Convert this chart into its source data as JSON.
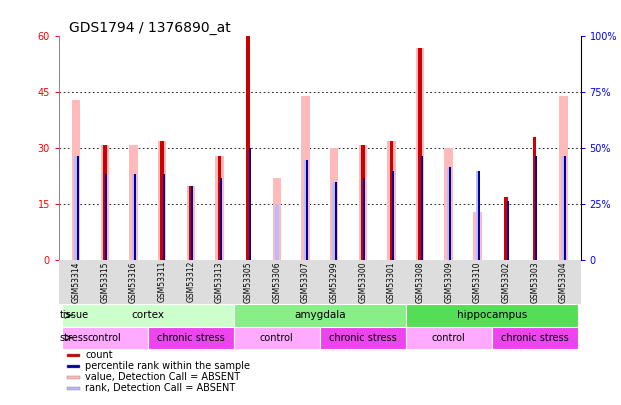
{
  "title": "GDS1794 / 1376890_at",
  "samples": [
    "GSM53314",
    "GSM53315",
    "GSM53316",
    "GSM53311",
    "GSM53312",
    "GSM53313",
    "GSM53305",
    "GSM53306",
    "GSM53307",
    "GSM53299",
    "GSM53300",
    "GSM53301",
    "GSM53308",
    "GSM53309",
    "GSM53310",
    "GSM53302",
    "GSM53303",
    "GSM53304"
  ],
  "count_values": [
    0,
    31,
    0,
    32,
    20,
    28,
    60,
    0,
    0,
    0,
    31,
    32,
    57,
    0,
    0,
    17,
    33,
    0
  ],
  "percentile_values": [
    28,
    23,
    23,
    23,
    20,
    22,
    30,
    0,
    27,
    21,
    22,
    24,
    28,
    25,
    24,
    16,
    28,
    28
  ],
  "absent_value_bars": [
    43,
    31,
    31,
    32,
    20,
    28,
    0,
    22,
    44,
    30,
    31,
    32,
    57,
    30,
    13,
    0,
    0,
    44
  ],
  "absent_rank_bars": [
    28,
    23,
    23,
    23,
    20,
    22,
    0,
    15,
    27,
    21,
    22,
    24,
    28,
    25,
    24,
    0,
    0,
    28
  ],
  "ylim_left": [
    0,
    60
  ],
  "ylim_right": [
    0,
    100
  ],
  "yticks_left": [
    0,
    15,
    30,
    45,
    60
  ],
  "yticks_right": [
    0,
    25,
    50,
    75,
    100
  ],
  "ytick_labels_left": [
    "0",
    "15",
    "30",
    "45",
    "60"
  ],
  "ytick_labels_right": [
    "0",
    "25%",
    "50%",
    "75%",
    "100%"
  ],
  "tissue_groups": [
    {
      "label": "cortex",
      "start": 0,
      "end": 6,
      "color": "#ccffcc"
    },
    {
      "label": "amygdala",
      "start": 6,
      "end": 12,
      "color": "#88ee88"
    },
    {
      "label": "hippocampus",
      "start": 12,
      "end": 18,
      "color": "#55dd55"
    }
  ],
  "stress_groups": [
    {
      "label": "control",
      "start": 0,
      "end": 3,
      "color": "#ffaaff"
    },
    {
      "label": "chronic stress",
      "start": 3,
      "end": 6,
      "color": "#ee44ee"
    },
    {
      "label": "control",
      "start": 6,
      "end": 9,
      "color": "#ffaaff"
    },
    {
      "label": "chronic stress",
      "start": 9,
      "end": 12,
      "color": "#ee44ee"
    },
    {
      "label": "control",
      "start": 12,
      "end": 15,
      "color": "#ffaaff"
    },
    {
      "label": "chronic stress",
      "start": 15,
      "end": 18,
      "color": "#ee44ee"
    }
  ],
  "color_count": "#cc0000",
  "color_percentile": "#000099",
  "color_absent_value": "#ffbbbb",
  "color_absent_rank": "#bbbbff",
  "legend_items": [
    {
      "label": "count",
      "color": "#cc0000"
    },
    {
      "label": "percentile rank within the sample",
      "color": "#000099"
    },
    {
      "label": "value, Detection Call = ABSENT",
      "color": "#ffbbbb"
    },
    {
      "label": "rank, Detection Call = ABSENT",
      "color": "#bbbbff"
    }
  ],
  "grid_yticks": [
    15,
    30,
    45
  ],
  "background_color": "#ffffff"
}
